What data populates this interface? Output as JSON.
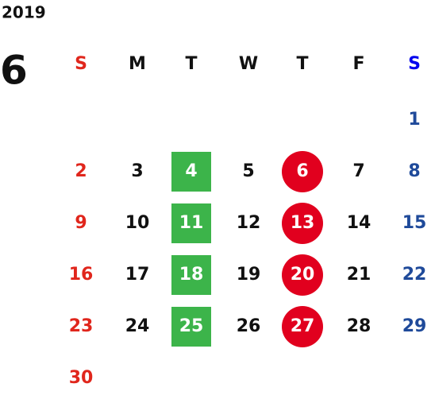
{
  "year": "2019",
  "month": "6",
  "weekdays": [
    "S",
    "M",
    "T",
    "W",
    "T",
    "F",
    "S"
  ],
  "weeks": [
    [
      null,
      null,
      null,
      null,
      null,
      null,
      1
    ],
    [
      2,
      3,
      4,
      5,
      6,
      7,
      8
    ],
    [
      9,
      10,
      11,
      12,
      13,
      14,
      15
    ],
    [
      16,
      17,
      18,
      19,
      20,
      21,
      22
    ],
    [
      23,
      24,
      25,
      26,
      27,
      28,
      29
    ],
    [
      30
    ]
  ]
}
